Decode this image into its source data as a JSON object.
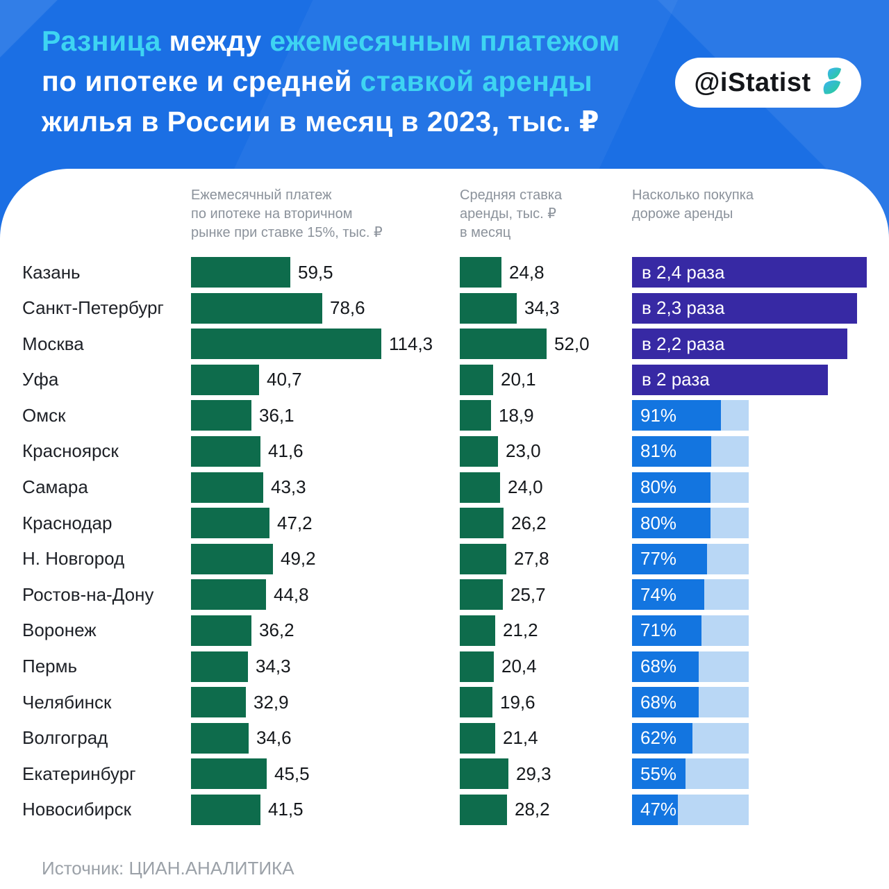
{
  "header": {
    "title_lines": [
      [
        {
          "text": "Разница",
          "accent": true
        },
        {
          "text": " между ",
          "accent": false
        },
        {
          "text": "ежемесячным платежом",
          "accent": true
        }
      ],
      [
        {
          "text": "по ипотеке и средней ",
          "accent": false
        },
        {
          "text": "ставкой аренды",
          "accent": true
        }
      ],
      [
        {
          "text": "жилья в России в месяц в 2023, тыс. ₽",
          "accent": false
        }
      ]
    ],
    "logo_text": "@iStatist"
  },
  "columns": {
    "mortgage_header": "Ежемесячный платеж\nпо ипотеке на вторичном\nрынке при ставке 15%, тыс. ₽",
    "rent_header": "Средняя ставка\nаренды, тыс. ₽\nв месяц",
    "ratio_header": "Насколько покупка\nдороже аренды"
  },
  "source": "Источник: ЦИАН.АНАЛИТИКА",
  "colors": {
    "header_bg": "#1B6FE4",
    "accent_cyan": "#3ED4F2",
    "bar_green": "#0E6C4C",
    "bar_purple": "#3729A4",
    "bar_blue": "#1375E0",
    "bar_blue_light": "#B9D7F5"
  },
  "chart_data": {
    "type": "bar",
    "orientation": "horizontal",
    "title": "Разница между ежемесячным платежом по ипотеке и средней ставкой аренды жилья в России в месяц в 2023, тыс. ₽",
    "categories": [
      "Казань",
      "Санкт-Петербург",
      "Москва",
      "Уфа",
      "Омск",
      "Красноярск",
      "Самара",
      "Краснодар",
      "Н. Новгород",
      "Ростов-на-Дону",
      "Воронеж",
      "Пермь",
      "Челябинск",
      "Волгоград",
      "Екатеринбург",
      "Новосибирск"
    ],
    "series": [
      {
        "name": "Ежемесячный платеж по ипотеке на вторичном рынке при ставке 15%, тыс. ₽",
        "values": [
          59.5,
          78.6,
          114.3,
          40.7,
          36.1,
          41.6,
          43.3,
          47.2,
          49.2,
          44.8,
          36.2,
          34.3,
          32.9,
          34.6,
          45.5,
          41.5
        ],
        "labels": [
          "59,5",
          "78,6",
          "114,3",
          "40,7",
          "36,1",
          "41,6",
          "43,3",
          "47,2",
          "49,2",
          "44,8",
          "36,2",
          "34,3",
          "32,9",
          "34,6",
          "45,5",
          "41,5"
        ]
      },
      {
        "name": "Средняя ставка аренды, тыс. ₽ в месяц",
        "values": [
          24.8,
          34.3,
          52.0,
          20.1,
          18.9,
          23.0,
          24.0,
          26.2,
          27.8,
          25.7,
          21.2,
          20.4,
          19.6,
          21.4,
          29.3,
          28.2
        ],
        "labels": [
          "24,8",
          "34,3",
          "52,0",
          "20,1",
          "18,9",
          "23,0",
          "24,0",
          "26,2",
          "27,8",
          "25,7",
          "21,2",
          "20,4",
          "19,6",
          "21,4",
          "29,3",
          "28,2"
        ]
      },
      {
        "name": "Насколько покупка дороже аренды",
        "values_percent": [
          240,
          230,
          220,
          200,
          91,
          81,
          80,
          80,
          77,
          74,
          71,
          68,
          68,
          62,
          55,
          47
        ],
        "labels": [
          "в 2,4 раза",
          "в 2,3 раза",
          "в 2,2 раза",
          "в 2 раза",
          "91%",
          "81%",
          "80%",
          "80%",
          "77%",
          "74%",
          "71%",
          "68%",
          "68%",
          "62%",
          "55%",
          "47%"
        ],
        "styles": [
          "ratio",
          "ratio",
          "ratio",
          "ratio",
          "percent",
          "percent",
          "percent",
          "percent",
          "percent",
          "percent",
          "percent",
          "percent",
          "percent",
          "percent",
          "percent",
          "percent"
        ]
      }
    ],
    "legend": "none",
    "grid": false
  }
}
